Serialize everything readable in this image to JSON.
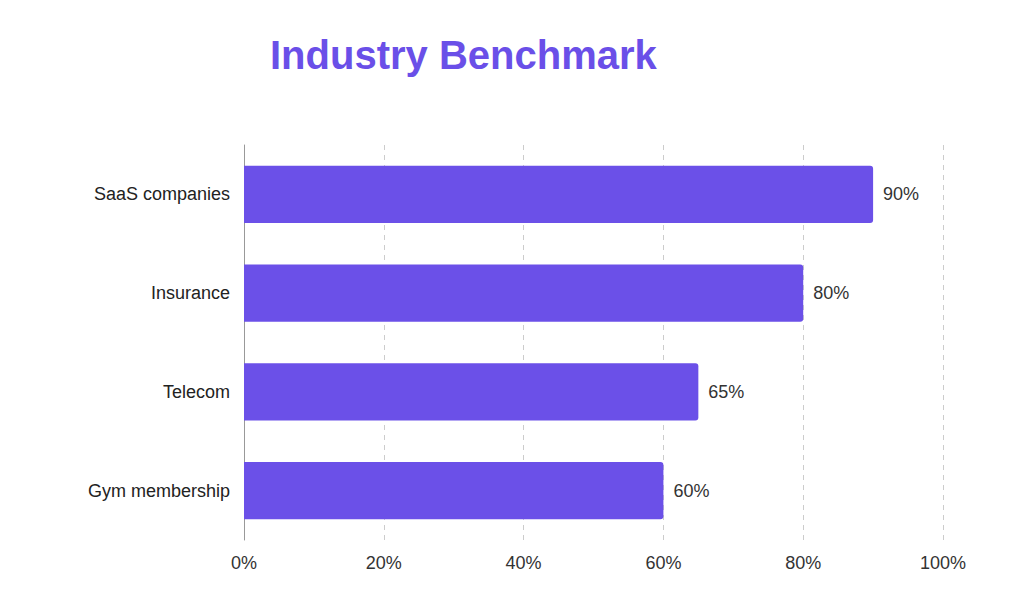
{
  "chart_data": {
    "type": "bar",
    "title": "Industry Benchmark",
    "orientation": "horizontal",
    "categories": [
      "SaaS companies",
      "Insurance",
      "Telecom",
      "Gym membership"
    ],
    "values": [
      90,
      80,
      65,
      60
    ],
    "value_labels": [
      "90%",
      "80%",
      "65%",
      "60%"
    ],
    "color": "#6b50e8",
    "xlim": [
      0,
      100
    ],
    "xticks": [
      {
        "value": 0,
        "label": "0%"
      },
      {
        "value": 20,
        "label": "20%"
      },
      {
        "value": 40,
        "label": "40%"
      },
      {
        "value": 60,
        "label": "60%"
      },
      {
        "value": 80,
        "label": "80%"
      },
      {
        "value": 100,
        "label": "100%"
      }
    ],
    "grid": true,
    "data_labels": true
  }
}
